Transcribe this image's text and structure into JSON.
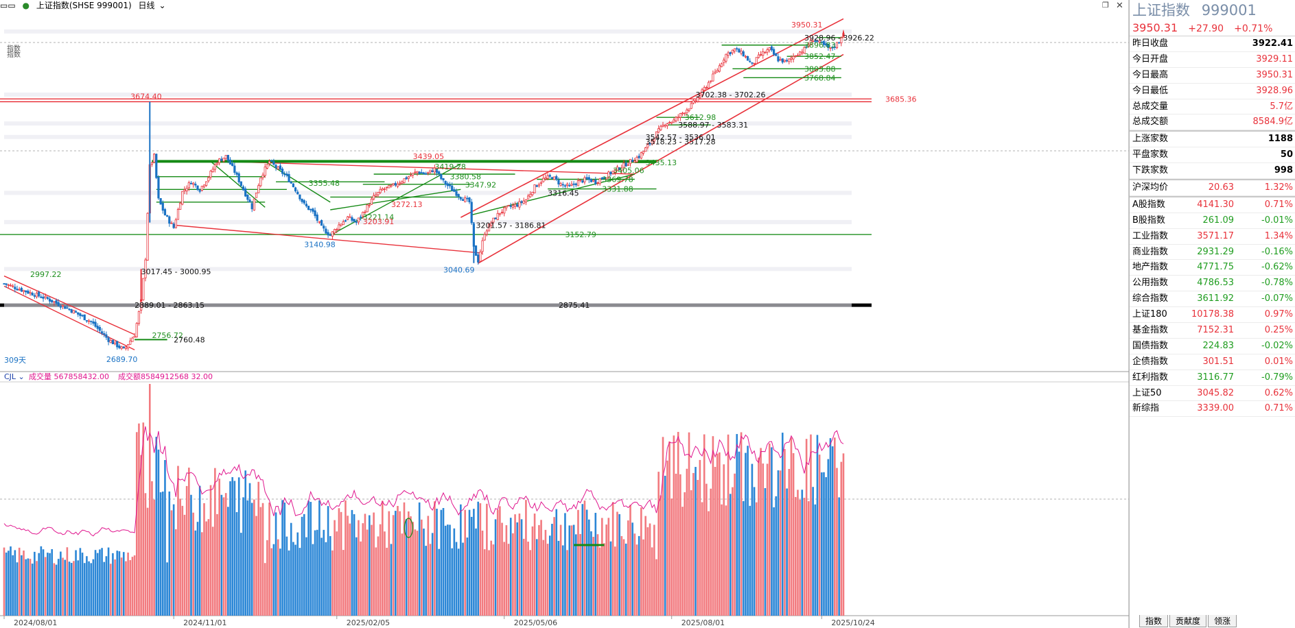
{
  "header": {
    "menu_icon": "menu-icon",
    "title": "上证指数(SHSE 999001)",
    "period": "日线"
  },
  "window_controls": {
    "restore": "❐",
    "close": "✕"
  },
  "side_labels": [
    "指数",
    "指数"
  ],
  "volume_header": {
    "indicator": "CJL",
    "volume_label": "成交量 567858432.00",
    "amount_label": "成交额 8584912568 32.00"
  },
  "chart_data": {
    "type": "candlestick",
    "title": "上证指数(SHSE 999001)",
    "period": "日线",
    "x_date_labels": [
      "2024/08/01",
      "2024/11/01",
      "2025/02/05",
      "2025/05/06",
      "2025/08/01",
      "2025/10/24"
    ],
    "ylim": [
      2620,
      4020
    ],
    "ohlc_anchor": {
      "open": 3929.11,
      "high": 3950.31,
      "low": 3928.96,
      "close": 3950.31
    },
    "price_annotations": [
      {
        "text": "3674.40",
        "color": "red"
      },
      {
        "text": "3685.36",
        "color": "red"
      },
      {
        "text": "3950.31",
        "color": "red"
      },
      {
        "text": "3928.96 - 3926.22",
        "color": "black"
      },
      {
        "text": "3896.83",
        "color": "green"
      },
      {
        "text": "3852.47",
        "color": "green"
      },
      {
        "text": "3803.88",
        "color": "green"
      },
      {
        "text": "3768.84",
        "color": "green"
      },
      {
        "text": "3702.38 - 3702.26",
        "color": "black"
      },
      {
        "text": "3612.98",
        "color": "green"
      },
      {
        "text": "3588.97 - 3583.31",
        "color": "black"
      },
      {
        "text": "3542.57 - 3536.01",
        "color": "black"
      },
      {
        "text": "3518.23 - 3517.28",
        "color": "black"
      },
      {
        "text": "3439.05",
        "color": "red"
      },
      {
        "text": "3435.13",
        "color": "green"
      },
      {
        "text": "3419.28",
        "color": "green"
      },
      {
        "text": "3405.06",
        "color": "green"
      },
      {
        "text": "3380.58",
        "color": "green"
      },
      {
        "text": "3369.78",
        "color": "green"
      },
      {
        "text": "3355.48",
        "color": "green"
      },
      {
        "text": "3347.92",
        "color": "green"
      },
      {
        "text": "3331.88",
        "color": "green"
      },
      {
        "text": "3316.45",
        "color": "black"
      },
      {
        "text": "3272.13",
        "color": "red"
      },
      {
        "text": "3221.14",
        "color": "green"
      },
      {
        "text": "3203.91",
        "color": "red"
      },
      {
        "text": "3201.57 - 3186.81",
        "color": "black"
      },
      {
        "text": "3152.79",
        "color": "green"
      },
      {
        "text": "3140.98",
        "color": "blue"
      },
      {
        "text": "3040.69",
        "color": "blue"
      },
      {
        "text": "3017.45 - 3000.95",
        "color": "black"
      },
      {
        "text": "2997.22",
        "color": "green"
      },
      {
        "text": "2889.01 - 2863.15",
        "color": "black"
      },
      {
        "text": "2875.41",
        "color": "black"
      },
      {
        "text": "2756.72",
        "color": "green"
      },
      {
        "text": "2760.48",
        "color": "black"
      },
      {
        "text": "2689.70",
        "color": "blue"
      },
      {
        "text": "309天",
        "color": "blue"
      }
    ],
    "horizontal_levels": [
      {
        "value": 3685.36,
        "color": "#e8313a"
      },
      {
        "value": 3674.4,
        "color": "#e8313a"
      },
      {
        "value": 3152.79,
        "color": "#1f8f1f"
      },
      {
        "value": 2875.41,
        "color": "#000000"
      }
    ],
    "price_path": [
      [
        0,
        2960
      ],
      [
        10,
        2930
      ],
      [
        20,
        2900
      ],
      [
        30,
        2860
      ],
      [
        40,
        2810
      ],
      [
        48,
        2740
      ],
      [
        55,
        2700
      ],
      [
        60,
        2760
      ],
      [
        63,
        2890
      ],
      [
        65,
        3060
      ],
      [
        67,
        3420
      ],
      [
        69,
        3460
      ],
      [
        71,
        3290
      ],
      [
        74,
        3230
      ],
      [
        78,
        3180
      ],
      [
        82,
        3320
      ],
      [
        86,
        3360
      ],
      [
        90,
        3330
      ],
      [
        94,
        3380
      ],
      [
        98,
        3440
      ],
      [
        102,
        3460
      ],
      [
        106,
        3400
      ],
      [
        110,
        3330
      ],
      [
        114,
        3260
      ],
      [
        118,
        3380
      ],
      [
        122,
        3440
      ],
      [
        126,
        3410
      ],
      [
        130,
        3380
      ],
      [
        134,
        3330
      ],
      [
        138,
        3270
      ],
      [
        142,
        3240
      ],
      [
        146,
        3180
      ],
      [
        150,
        3150
      ],
      [
        154,
        3190
      ],
      [
        158,
        3220
      ],
      [
        162,
        3200
      ],
      [
        166,
        3250
      ],
      [
        170,
        3300
      ],
      [
        174,
        3330
      ],
      [
        178,
        3340
      ],
      [
        182,
        3360
      ],
      [
        186,
        3380
      ],
      [
        190,
        3400
      ],
      [
        194,
        3390
      ],
      [
        198,
        3410
      ],
      [
        202,
        3360
      ],
      [
        206,
        3330
      ],
      [
        210,
        3300
      ],
      [
        214,
        3280
      ],
      [
        216,
        3100
      ],
      [
        218,
        3050
      ],
      [
        221,
        3160
      ],
      [
        224,
        3200
      ],
      [
        228,
        3240
      ],
      [
        232,
        3260
      ],
      [
        236,
        3270
      ],
      [
        240,
        3290
      ],
      [
        244,
        3340
      ],
      [
        248,
        3370
      ],
      [
        252,
        3380
      ],
      [
        256,
        3350
      ],
      [
        260,
        3340
      ],
      [
        264,
        3360
      ],
      [
        268,
        3370
      ],
      [
        272,
        3360
      ],
      [
        276,
        3380
      ],
      [
        280,
        3400
      ],
      [
        284,
        3420
      ],
      [
        288,
        3440
      ],
      [
        292,
        3460
      ],
      [
        296,
        3500
      ],
      [
        300,
        3550
      ],
      [
        304,
        3590
      ],
      [
        308,
        3600
      ],
      [
        312,
        3630
      ],
      [
        316,
        3660
      ],
      [
        320,
        3700
      ],
      [
        324,
        3750
      ],
      [
        328,
        3800
      ],
      [
        332,
        3860
      ],
      [
        336,
        3880
      ],
      [
        340,
        3860
      ],
      [
        344,
        3820
      ],
      [
        348,
        3860
      ],
      [
        352,
        3880
      ],
      [
        356,
        3840
      ],
      [
        360,
        3830
      ],
      [
        364,
        3860
      ],
      [
        368,
        3880
      ],
      [
        372,
        3920
      ],
      [
        376,
        3900
      ],
      [
        380,
        3880
      ],
      [
        384,
        3910
      ],
      [
        386,
        3950
      ]
    ],
    "volume_series_name": "CJL",
    "volume_values": [
      "low baseline ~0.3 normalized",
      "spike near index 67 (max)",
      "rising into the final third"
    ]
  },
  "quote_panel": {
    "title": "上证指数",
    "code": "999001",
    "price": "3950.31",
    "change": "+27.90",
    "change_pct": "+0.71%",
    "rows": [
      {
        "label": "昨日收盘",
        "value": "3922.41",
        "cls": "blk"
      },
      {
        "label": "今日开盘",
        "value": "3929.11",
        "cls": "red"
      },
      {
        "label": "今日最高",
        "value": "3950.31",
        "cls": "red"
      },
      {
        "label": "今日最低",
        "value": "3928.96",
        "cls": "red"
      },
      {
        "label": "总成交量",
        "value": "5.7亿",
        "cls": "red"
      },
      {
        "label": "总成交额",
        "value": "8584.9亿",
        "cls": "red"
      }
    ],
    "breadth": [
      {
        "label": "上涨家数",
        "value": "1188",
        "cls": "blk"
      },
      {
        "label": "平盘家数",
        "value": "50",
        "cls": "blk"
      },
      {
        "label": "下跌家数",
        "value": "998",
        "cls": "blk"
      }
    ],
    "avg_price": {
      "label": "沪深均价",
      "value": "20.63",
      "pct": "1.32%"
    },
    "indices": [
      {
        "label": "A股指数",
        "value": "4141.30",
        "pct": "0.71%",
        "cls": "red"
      },
      {
        "label": "B股指数",
        "value": "261.09",
        "pct": "-0.01%",
        "cls": "green"
      },
      {
        "label": "工业指数",
        "value": "3571.17",
        "pct": "1.34%",
        "cls": "red"
      },
      {
        "label": "商业指数",
        "value": "2931.29",
        "pct": "-0.16%",
        "cls": "green"
      },
      {
        "label": "地产指数",
        "value": "4771.75",
        "pct": "-0.62%",
        "cls": "green"
      },
      {
        "label": "公用指数",
        "value": "4786.53",
        "pct": "-0.78%",
        "cls": "green"
      },
      {
        "label": "综合指数",
        "value": "3611.92",
        "pct": "-0.07%",
        "cls": "green"
      },
      {
        "label": "上证180",
        "value": "10178.38",
        "pct": "0.97%",
        "cls": "red"
      },
      {
        "label": "基金指数",
        "value": "7152.31",
        "pct": "0.25%",
        "cls": "red"
      },
      {
        "label": "国债指数",
        "value": "224.83",
        "pct": "-0.02%",
        "cls": "green"
      },
      {
        "label": "企债指数",
        "value": "301.51",
        "pct": "0.01%",
        "cls": "red"
      },
      {
        "label": "红利指数",
        "value": "3116.77",
        "pct": "-0.79%",
        "cls": "green"
      },
      {
        "label": "上证50",
        "value": "3045.82",
        "pct": "0.62%",
        "cls": "red"
      },
      {
        "label": "新综指",
        "value": "3339.00",
        "pct": "0.71%",
        "cls": "red"
      }
    ]
  },
  "bottom_tabs": [
    "指数",
    "贡献度",
    "领涨"
  ]
}
